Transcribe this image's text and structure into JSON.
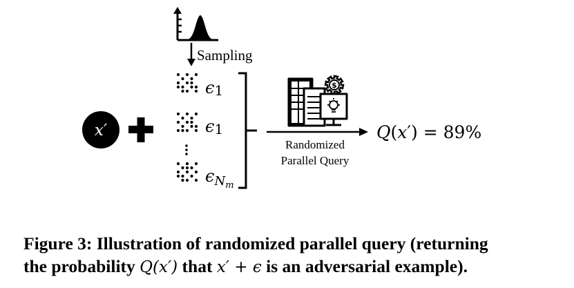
{
  "diagram": {
    "sampling_label": "Sampling",
    "input_symbol": "x′",
    "noise_labels": [
      "ϵ1",
      "ϵ1",
      "ϵNm"
    ],
    "query_label_line1": "Randomized",
    "query_label_line2": "Parallel Query",
    "result_text": "Q(x′) = 89%",
    "result_value_percent": 89
  },
  "caption": {
    "part1": "Figure 3: Illustration of randomized parallel query (returning",
    "part2_prefix": "the probability ",
    "q_expr": "Q(x′)",
    "part2_mid1": " that ",
    "x_expr": "x′ + ϵ",
    "part2_mid2": " is an adversarial example)."
  },
  "colors": {
    "ink": "#000000",
    "background": "#ffffff"
  },
  "icons": [
    "distribution-plot-icon",
    "noise-pattern-icon",
    "server-dashboard-icon",
    "gear-dollar-icon",
    "lightbulb-icon"
  ]
}
